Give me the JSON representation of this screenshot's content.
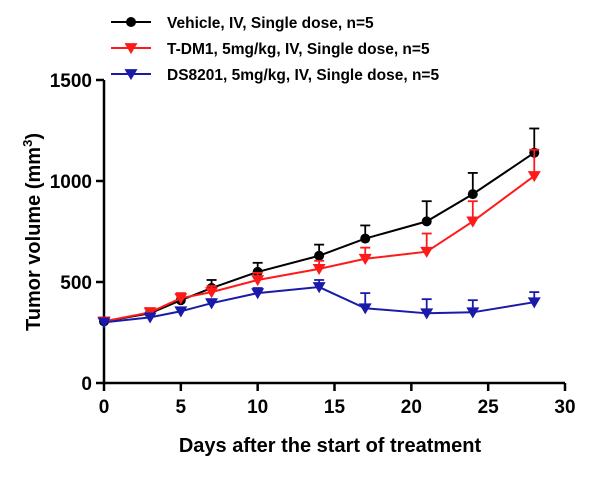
{
  "chart_data": {
    "type": "line",
    "title": "",
    "xlabel": "Days after the start of treatment",
    "ylabel_main": "Tumor volume (mm",
    "ylabel_sup": "3",
    "ylabel_close": ")",
    "xlim": [
      0,
      30
    ],
    "ylim": [
      0,
      1500
    ],
    "xticks": [
      0,
      5,
      10,
      15,
      20,
      25,
      30
    ],
    "yticks": [
      0,
      500,
      1000,
      1500
    ],
    "legend_position": "top-left",
    "series": [
      {
        "name": "Vehicle, IV, Single dose, n=5",
        "color": "#000000",
        "marker": "circle",
        "x": [
          0,
          3,
          5,
          7,
          10,
          14,
          17,
          21,
          24,
          28
        ],
        "y": [
          305,
          345,
          410,
          470,
          550,
          630,
          715,
          800,
          935,
          1140
        ],
        "err": [
          15,
          25,
          30,
          40,
          45,
          55,
          65,
          100,
          105,
          120
        ]
      },
      {
        "name": "T-DM1, 5mg/kg, IV, Single dose, n=5",
        "color": "#ff1a1a",
        "marker": "triangle-down",
        "x": [
          0,
          3,
          5,
          7,
          10,
          14,
          17,
          21,
          24,
          28
        ],
        "y": [
          305,
          350,
          420,
          450,
          510,
          565,
          615,
          650,
          800,
          1025
        ],
        "err": [
          15,
          20,
          25,
          30,
          35,
          40,
          55,
          90,
          100,
          130
        ]
      },
      {
        "name": "DS8201, 5mg/kg, IV, Single dose, n=5",
        "color": "#1a1aaa",
        "marker": "triangle-down",
        "x": [
          0,
          3,
          5,
          7,
          10,
          14,
          17,
          21,
          24,
          28
        ],
        "y": [
          300,
          325,
          355,
          395,
          445,
          475,
          370,
          345,
          350,
          400
        ],
        "err": [
          10,
          10,
          15,
          20,
          25,
          35,
          75,
          70,
          60,
          50
        ]
      }
    ]
  }
}
